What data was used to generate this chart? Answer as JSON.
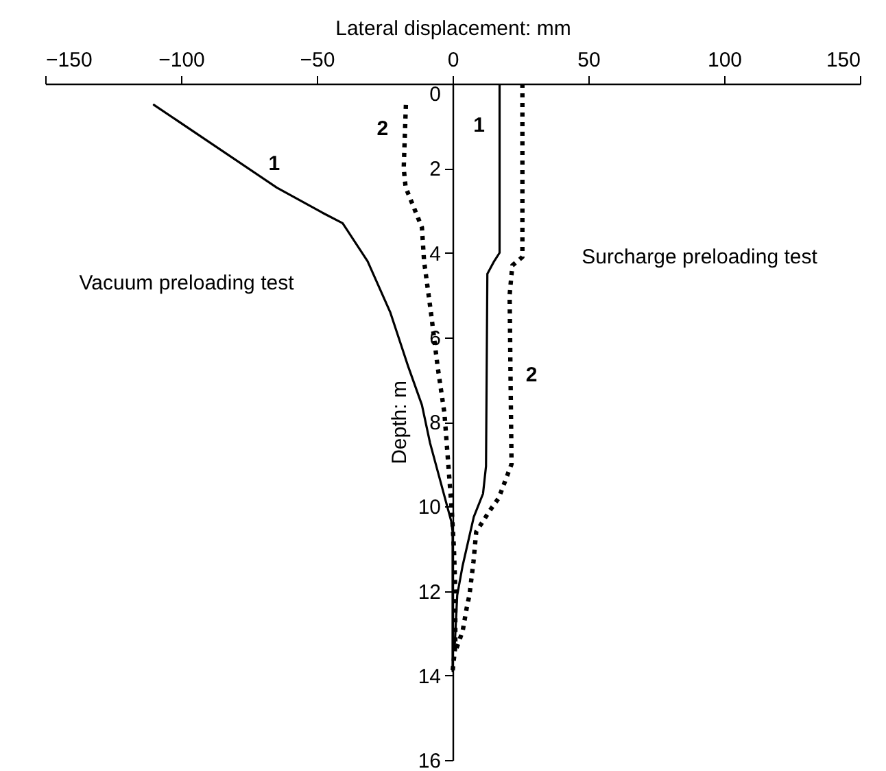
{
  "chart_data": {
    "type": "line",
    "xlabel": "Lateral displacement: mm",
    "ylabel": "Depth: m",
    "xlim": [
      -150,
      150
    ],
    "xticks": [
      -150,
      -100,
      -50,
      0,
      50,
      100,
      150
    ],
    "ylim": [
      16,
      0
    ],
    "yticks": [
      0,
      2,
      4,
      6,
      8,
      10,
      12,
      14,
      16
    ],
    "series": [
      {
        "name": "1",
        "color": "#000000",
        "line_style": "solid",
        "x": [
          -110,
          -64.7,
          -48,
          -40.5,
          -31.3,
          -23,
          -16.3,
          -11.3,
          -8.3,
          -0.5,
          0,
          0
        ],
        "values": [
          0.5,
          2.46,
          3.05,
          3.3,
          4.2,
          5.4,
          6.7,
          7.6,
          8.5,
          10.35,
          10.6,
          13.9
        ]
      },
      {
        "name": "2",
        "color": "#000000",
        "line_style": "dotted",
        "x": [
          -17.2,
          -18,
          -17.3,
          -11.3,
          -10.5,
          -8,
          -5.5,
          -3,
          -0.3,
          0.5,
          1,
          1,
          0
        ],
        "values": [
          0.5,
          2,
          2.45,
          3.4,
          4.2,
          5.4,
          6.7,
          7.8,
          10.1,
          11,
          12,
          13.3,
          13.9
        ]
      },
      {
        "name": "1",
        "color": "#000000",
        "line_style": "solid",
        "x": [
          17.3,
          17.3,
          15.3,
          12.8,
          12.3,
          11.2,
          7.8,
          3.7,
          1.7,
          0.7
        ],
        "values": [
          0,
          4,
          4.2,
          4.5,
          9.05,
          9.7,
          10.25,
          11.4,
          12.1,
          13.4
        ]
      },
      {
        "name": "2",
        "color": "#000000",
        "line_style": "dotted",
        "x": [
          25.7,
          25.7,
          22,
          21,
          21.7,
          17,
          13.7,
          8.7,
          7.7,
          6.2,
          5.2,
          3.7,
          1.2
        ],
        "values": [
          0,
          4.1,
          4.3,
          5,
          9,
          9.8,
          10.1,
          10.6,
          11.3,
          12.1,
          12.4,
          12.95,
          13.4
        ]
      }
    ],
    "annotations": [
      "Vacuum preloading test",
      "Surcharge preloading test"
    ]
  }
}
